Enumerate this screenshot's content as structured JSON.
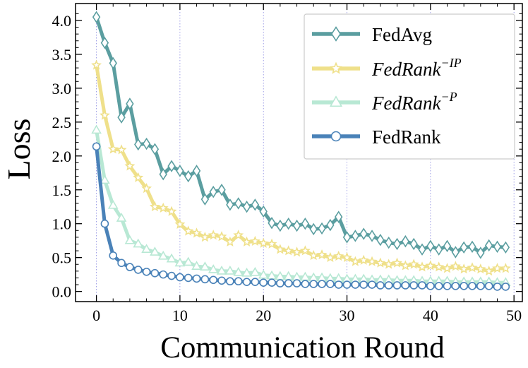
{
  "chart_data": {
    "type": "line",
    "xlabel": "Communication Round",
    "ylabel": "Loss",
    "xlim": [
      -2.5,
      51
    ],
    "ylim": [
      -0.15,
      4.25
    ],
    "xticks": [
      0,
      10,
      20,
      30,
      40,
      50
    ],
    "xtick_labels": [
      "0",
      "10",
      "20",
      "30",
      "40",
      "50"
    ],
    "yticks": [
      0.0,
      0.5,
      1.0,
      1.5,
      2.0,
      2.5,
      3.0,
      3.5,
      4.0
    ],
    "ytick_labels": [
      "0.0",
      "0.5",
      "1.0",
      "1.5",
      "2.0",
      "2.5",
      "3.0",
      "3.5",
      "4.0"
    ],
    "grid": "vertical dotted lines at x ticks",
    "legend_position": "top-right",
    "x": [
      0,
      1,
      2,
      3,
      4,
      5,
      6,
      7,
      8,
      9,
      10,
      11,
      12,
      13,
      14,
      15,
      16,
      17,
      18,
      19,
      20,
      21,
      22,
      23,
      24,
      25,
      26,
      27,
      28,
      29,
      30,
      31,
      32,
      33,
      34,
      35,
      36,
      37,
      38,
      39,
      40,
      41,
      42,
      43,
      44,
      45,
      46,
      47,
      48,
      49
    ],
    "series": [
      {
        "name": "FedAvg",
        "legend_base": "FedAvg",
        "legend_sup": "",
        "italic": false,
        "color": "#5b9ea0",
        "marker": "diamond",
        "values": [
          4.05,
          3.67,
          3.37,
          2.57,
          2.77,
          2.17,
          2.18,
          2.1,
          1.73,
          1.85,
          1.78,
          1.7,
          1.78,
          1.36,
          1.47,
          1.5,
          1.28,
          1.3,
          1.25,
          1.28,
          1.18,
          1.01,
          0.97,
          1.0,
          0.97,
          1.0,
          0.92,
          0.93,
          0.98,
          1.1,
          0.8,
          0.82,
          0.85,
          0.82,
          0.76,
          0.72,
          0.7,
          0.74,
          0.7,
          0.62,
          0.67,
          0.62,
          0.67,
          0.58,
          0.65,
          0.66,
          0.57,
          0.68,
          0.66,
          0.65
        ]
      },
      {
        "name": "FedRank^-IP",
        "legend_base": "FedRank",
        "legend_sup": "−IP",
        "italic": true,
        "color": "#efe08a",
        "marker": "star",
        "values": [
          3.34,
          2.6,
          2.1,
          2.09,
          1.85,
          1.68,
          1.52,
          1.25,
          1.23,
          1.18,
          0.99,
          0.89,
          0.86,
          0.8,
          0.83,
          0.81,
          0.73,
          0.83,
          0.73,
          0.74,
          0.71,
          0.7,
          0.62,
          0.6,
          0.58,
          0.6,
          0.53,
          0.54,
          0.5,
          0.52,
          0.5,
          0.44,
          0.46,
          0.44,
          0.42,
          0.4,
          0.42,
          0.38,
          0.4,
          0.36,
          0.38,
          0.36,
          0.34,
          0.37,
          0.33,
          0.35,
          0.33,
          0.3,
          0.34,
          0.34
        ]
      },
      {
        "name": "FedRank^-P",
        "legend_base": "FedRank",
        "legend_sup": "−P",
        "italic": true,
        "color": "#b8e8d4",
        "marker": "triangle",
        "values": [
          2.38,
          1.64,
          1.27,
          1.08,
          0.75,
          0.7,
          0.62,
          0.58,
          0.52,
          0.48,
          0.42,
          0.43,
          0.37,
          0.36,
          0.32,
          0.3,
          0.3,
          0.28,
          0.27,
          0.28,
          0.24,
          0.23,
          0.22,
          0.22,
          0.21,
          0.21,
          0.2,
          0.2,
          0.19,
          0.19,
          0.18,
          0.18,
          0.18,
          0.17,
          0.17,
          0.17,
          0.16,
          0.16,
          0.16,
          0.15,
          0.15,
          0.15,
          0.15,
          0.14,
          0.14,
          0.14,
          0.14,
          0.14,
          0.13,
          0.13
        ]
      },
      {
        "name": "FedRank",
        "legend_base": "FedRank",
        "legend_sup": "",
        "italic": false,
        "color": "#4a82b8",
        "marker": "circle",
        "values": [
          2.14,
          1.0,
          0.53,
          0.42,
          0.36,
          0.32,
          0.29,
          0.27,
          0.25,
          0.23,
          0.21,
          0.2,
          0.19,
          0.18,
          0.17,
          0.16,
          0.15,
          0.15,
          0.14,
          0.14,
          0.13,
          0.13,
          0.12,
          0.12,
          0.12,
          0.11,
          0.11,
          0.11,
          0.11,
          0.1,
          0.1,
          0.1,
          0.1,
          0.1,
          0.09,
          0.09,
          0.09,
          0.09,
          0.09,
          0.09,
          0.08,
          0.08,
          0.08,
          0.08,
          0.08,
          0.08,
          0.08,
          0.08,
          0.07,
          0.07
        ]
      }
    ]
  }
}
